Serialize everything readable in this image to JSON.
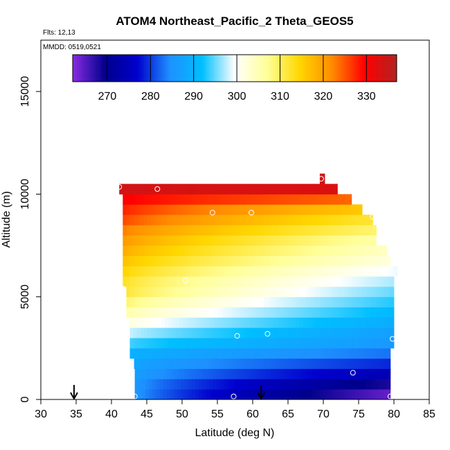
{
  "chart_data": {
    "type": "heatmap",
    "title": "ATOM4 Northeast_Pacific_2 Theta_GEOS5",
    "annotations": {
      "flights": "Flts: 12,13",
      "dates": "MMDD: 0519,0521"
    },
    "xlabel": "Latitude (deg N)",
    "ylabel": "Altitude (m)",
    "xlim": [
      30,
      85
    ],
    "ylim": [
      0,
      17500
    ],
    "xticks": [
      30,
      35,
      40,
      45,
      50,
      55,
      60,
      65,
      70,
      75,
      80,
      85
    ],
    "yticks": [
      0,
      5000,
      10000,
      15000
    ],
    "colorbar": {
      "range": [
        262,
        337
      ],
      "ticks": [
        270,
        280,
        290,
        300,
        310,
        320,
        330
      ],
      "colors": [
        "#8a2be2",
        "#00008b",
        "#0000cd",
        "#1e90ff",
        "#00bfff",
        "#ffffff",
        "#ffff99",
        "#ffd700",
        "#ff8c00",
        "#ff0000",
        "#b22222"
      ]
    },
    "profiles": [
      {
        "alt": 0,
        "lat_min": 43.3,
        "lat_max": 79.5,
        "theta_start": 286,
        "theta_end": 264
      },
      {
        "alt": 500,
        "lat_min": 43.3,
        "lat_max": 79.5,
        "theta_start": 286,
        "theta_end": 268
      },
      {
        "alt": 1000,
        "lat_min": 43.3,
        "lat_max": 79.5,
        "theta_start": 287,
        "theta_end": 274
      },
      {
        "alt": 1500,
        "lat_min": 43.2,
        "lat_max": 79.5,
        "theta_start": 288,
        "theta_end": 279
      },
      {
        "alt": 2000,
        "lat_min": 42.6,
        "lat_max": 79.5,
        "theta_start": 290,
        "theta_end": 283
      },
      {
        "alt": 2500,
        "lat_min": 42.6,
        "lat_max": 80.0,
        "theta_start": 294,
        "theta_end": 286
      },
      {
        "alt": 3000,
        "lat_min": 42.6,
        "lat_max": 80.0,
        "theta_start": 298,
        "theta_end": 287
      },
      {
        "alt": 3500,
        "lat_min": 42.6,
        "lat_max": 80.0,
        "theta_start": 302,
        "theta_end": 289
      },
      {
        "alt": 4000,
        "lat_min": 42.1,
        "lat_max": 80.0,
        "theta_start": 306,
        "theta_end": 291
      },
      {
        "alt": 4500,
        "lat_min": 42.1,
        "lat_max": 80.0,
        "theta_start": 309,
        "theta_end": 293
      },
      {
        "alt": 5000,
        "lat_min": 42.1,
        "lat_max": 80.0,
        "theta_start": 312,
        "theta_end": 295
      },
      {
        "alt": 5500,
        "lat_min": 41.6,
        "lat_max": 80.0,
        "theta_start": 313,
        "theta_end": 297
      },
      {
        "alt": 6000,
        "lat_min": 41.6,
        "lat_max": 80.5,
        "theta_start": 315,
        "theta_end": 299
      },
      {
        "alt": 6500,
        "lat_min": 41.6,
        "lat_max": 79.5,
        "theta_start": 317,
        "theta_end": 302
      },
      {
        "alt": 7000,
        "lat_min": 41.6,
        "lat_max": 79.0,
        "theta_start": 319,
        "theta_end": 304
      },
      {
        "alt": 7500,
        "lat_min": 41.6,
        "lat_max": 77.5,
        "theta_start": 321,
        "theta_end": 306
      },
      {
        "alt": 8000,
        "lat_min": 41.6,
        "lat_max": 77.5,
        "theta_start": 323,
        "theta_end": 309
      },
      {
        "alt": 8500,
        "lat_min": 41.6,
        "lat_max": 77.0,
        "theta_start": 326,
        "theta_end": 312
      },
      {
        "alt": 9000,
        "lat_min": 41.6,
        "lat_max": 75.5,
        "theta_start": 328,
        "theta_end": 316
      },
      {
        "alt": 9500,
        "lat_min": 41.6,
        "lat_max": 74.0,
        "theta_start": 330,
        "theta_end": 324
      },
      {
        "alt": 10000,
        "lat_min": 41.1,
        "lat_max": 72.0,
        "theta_start": 334,
        "theta_end": 333
      },
      {
        "alt": 10500,
        "lat_min": 69.5,
        "lat_max": 70.2,
        "theta_start": 334,
        "theta_end": 334
      }
    ],
    "row_height": 500,
    "points": [
      {
        "lat": 41.1,
        "alt": 10350
      },
      {
        "lat": 46.5,
        "alt": 10250
      },
      {
        "lat": 54.3,
        "alt": 9100
      },
      {
        "lat": 59.8,
        "alt": 9100
      },
      {
        "lat": 69.7,
        "alt": 10750
      },
      {
        "lat": 77.0,
        "alt": 8900
      },
      {
        "lat": 41.6,
        "alt": 5400
      },
      {
        "lat": 50.5,
        "alt": 5800
      },
      {
        "lat": 57.8,
        "alt": 3100
      },
      {
        "lat": 62.1,
        "alt": 3200
      },
      {
        "lat": 79.8,
        "alt": 2950
      },
      {
        "lat": 74.2,
        "alt": 1300
      },
      {
        "lat": 43.3,
        "alt": 150
      },
      {
        "lat": 57.3,
        "alt": 150
      },
      {
        "lat": 79.5,
        "alt": 150
      }
    ],
    "arrows": [
      34.7,
      61.2
    ]
  }
}
